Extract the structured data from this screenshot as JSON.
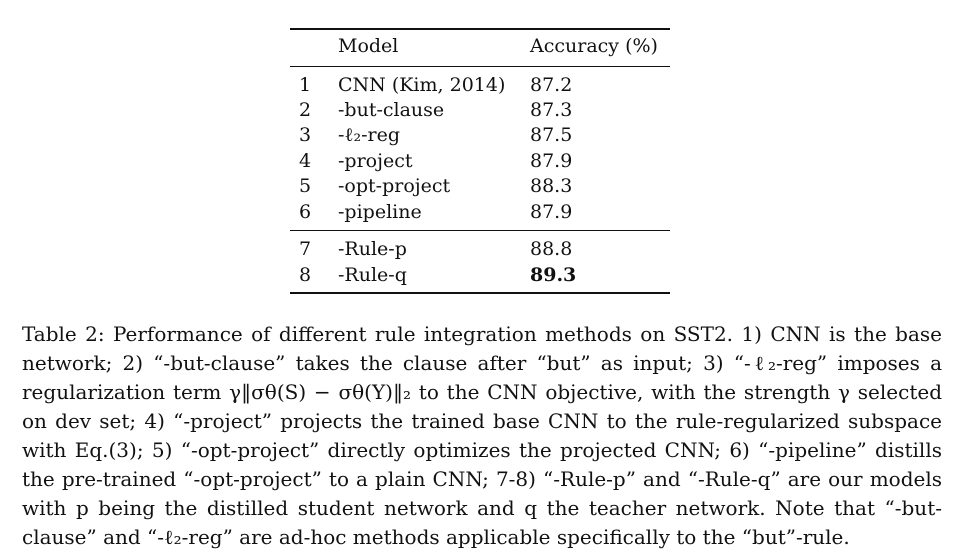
{
  "table": {
    "headers": {
      "index": "",
      "model": "Model",
      "accuracy": "Accuracy (%)"
    },
    "group1": [
      {
        "index": "1",
        "model": "CNN (Kim, 2014)",
        "accuracy": "87.2"
      },
      {
        "index": "2",
        "model": "-but-clause",
        "accuracy": "87.3"
      },
      {
        "index": "3",
        "model": "-ℓ₂-reg",
        "accuracy": "87.5"
      },
      {
        "index": "4",
        "model": "-project",
        "accuracy": "87.9"
      },
      {
        "index": "5",
        "model": "-opt-project",
        "accuracy": "88.3"
      },
      {
        "index": "6",
        "model": "-pipeline",
        "accuracy": "87.9"
      }
    ],
    "group2": [
      {
        "index": "7",
        "model": "-Rule-p",
        "accuracy": "88.8"
      },
      {
        "index": "8",
        "model": "-Rule-q",
        "accuracy": "89.3",
        "best": true
      }
    ]
  },
  "caption": "Table 2: Performance of different rule integration methods on SST2. 1) CNN is the base network; 2) “-but-clause” takes the clause after “but” as input; 3) “-ℓ₂-reg” imposes a regularization term γ‖σθ(S) − σθ(Y)‖₂ to the CNN objective, with the strength γ selected on dev set; 4) “-project” projects the trained base CNN to the rule-regularized subspace with Eq.(3); 5) “-opt-project” directly optimizes the projected CNN; 6) “-pipeline” distills the pre-trained “-opt-project” to a plain CNN; 7-8) “-Rule-p” and “-Rule-q” are our models with p being the distilled student network and q the teacher network. Note that “-but-clause” and “-ℓ₂-reg” are ad-hoc methods applicable specifically to the “but”-rule."
}
